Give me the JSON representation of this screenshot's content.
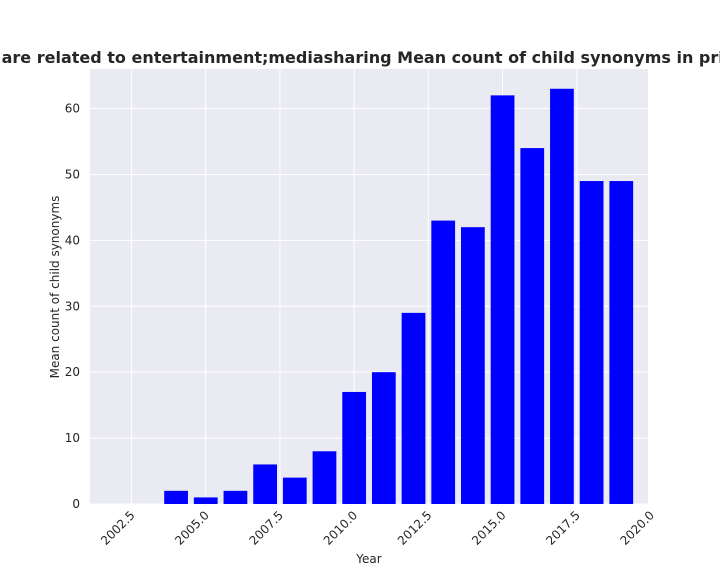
{
  "chart_data": {
    "type": "bar",
    "title": "Categories are related to entertainment;mediasharing Mean count of child synonyms in privacy policies",
    "xlabel": "Year",
    "ylabel": "Mean count of child synonyms",
    "x": [
      2002,
      2003,
      2004,
      2005,
      2006,
      2007,
      2008,
      2009,
      2010,
      2011,
      2012,
      2013,
      2014,
      2015,
      2016,
      2017,
      2018,
      2019
    ],
    "values": [
      0,
      0,
      2,
      1,
      2,
      6,
      4,
      8,
      17,
      20,
      29,
      43,
      42,
      62,
      54,
      63,
      49,
      49
    ],
    "xlim": [
      2001.1,
      2019.9
    ],
    "ylim": [
      0,
      66
    ],
    "xticks": [
      2002.5,
      2005.0,
      2007.5,
      2010.0,
      2012.5,
      2015.0,
      2017.5,
      2020.0
    ],
    "xtick_labels": [
      "2002.5",
      "2005.0",
      "2007.5",
      "2010.0",
      "2012.5",
      "2015.0",
      "2017.5",
      "2020.0"
    ],
    "yticks": [
      0,
      10,
      20,
      30,
      40,
      50,
      60
    ],
    "ytick_labels": [
      "0",
      "10",
      "20",
      "30",
      "40",
      "50",
      "60"
    ],
    "bar_color": "#0000ff",
    "background_color": "#eaeaf2",
    "grid": true,
    "legend": "none"
  }
}
